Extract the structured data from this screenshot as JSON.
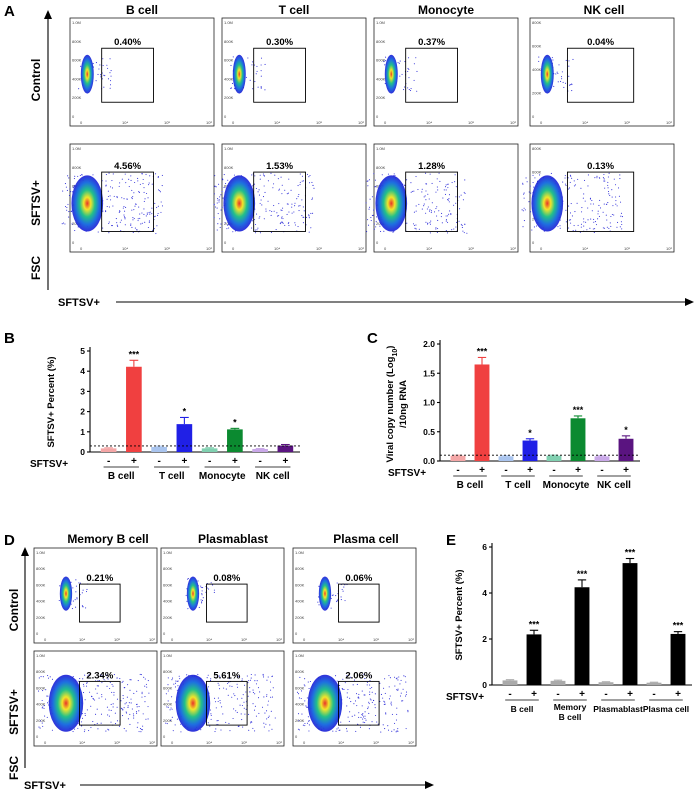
{
  "figure": {
    "panel_letters": [
      "A",
      "B",
      "C",
      "D",
      "E"
    ],
    "panel_a": {
      "columns": [
        "B cell",
        "T cell",
        "Monocyte",
        "NK cell"
      ],
      "rows": [
        "Control",
        "SFTSV+"
      ],
      "percents": [
        [
          "0.40%",
          "0.30%",
          "0.37%",
          "0.04%"
        ],
        [
          "4.56%",
          "1.53%",
          "1.28%",
          "0.13%"
        ]
      ],
      "y_axis_label": "FSC",
      "x_axis_label": "SFTSV+",
      "y_ticks": [
        "1.0M",
        "800K",
        "600K",
        "400K",
        "200K",
        "0"
      ],
      "y_ticks_nk": [
        "800K",
        "600K",
        "400K",
        "200K",
        "0"
      ],
      "x_ticks": [
        "0",
        "10⁴",
        "10⁵",
        "10⁶"
      ]
    },
    "panel_d": {
      "columns": [
        "Memory B cell",
        "Plasmablast",
        "Plasma cell"
      ],
      "rows": [
        "Control",
        "SFTSV+"
      ],
      "percents": [
        [
          "0.21%",
          "0.08%",
          "0.06%"
        ],
        [
          "2.34%",
          "5.61%",
          "2.06%"
        ]
      ],
      "y_axis_label": "FSC",
      "x_axis_label": "SFTSV+"
    },
    "colors": {
      "scale_lo": "#1b1bd6",
      "scale_mid": "#22c08a",
      "scale_hi": "#f2e62a",
      "scale_top": "#e8332a"
    }
  },
  "chart_data": [
    {
      "type": "bar",
      "panel": "B",
      "ylabel": "SFTSV+ Percent (%)",
      "xlabel": "SFTSV+",
      "ylim": [
        0,
        5
      ],
      "yticks": [
        "0",
        "1",
        "2",
        "3",
        "4",
        "5"
      ],
      "groups": [
        "B cell",
        "T cell",
        "Monocyte",
        "NK cell"
      ],
      "signs": [
        "-",
        "+"
      ],
      "values": [
        0.18,
        4.22,
        0.25,
        1.38,
        0.18,
        1.12,
        0.15,
        0.32
      ],
      "errors": [
        0.03,
        0.32,
        0.04,
        0.33,
        0.03,
        0.05,
        0.02,
        0.05
      ],
      "significance": [
        "",
        "***",
        "",
        "*",
        "",
        "*",
        "",
        ""
      ],
      "colors": [
        "#f4a6a6",
        "#f04040",
        "#a9c4ee",
        "#2020e6",
        "#80d0b0",
        "#0b8a30",
        "#c9a8e8",
        "#5a1480"
      ],
      "threshold": 0.3
    },
    {
      "type": "bar",
      "panel": "C",
      "ylabel": "Viral copy number (Log",
      "ylabel_sub": "10",
      "ylabel_tail": ")",
      "ylabel2": "/10ng RNA",
      "xlabel": "SFTSV+",
      "ylim": [
        0,
        2.0
      ],
      "yticks": [
        "0.0",
        "0.5",
        "1.0",
        "1.5",
        "2.0"
      ],
      "groups": [
        "B cell",
        "T cell",
        "Monocyte",
        "NK cell"
      ],
      "signs": [
        "-",
        "+"
      ],
      "values": [
        0.09,
        1.65,
        0.08,
        0.35,
        0.09,
        0.73,
        0.08,
        0.38
      ],
      "errors": [
        0.01,
        0.12,
        0.01,
        0.03,
        0.01,
        0.04,
        0.01,
        0.05
      ],
      "significance": [
        "",
        "***",
        "",
        "*",
        "",
        "***",
        "",
        "*"
      ],
      "colors": [
        "#f4a6a6",
        "#f04040",
        "#a9c4ee",
        "#2020e6",
        "#80d0b0",
        "#0b8a30",
        "#c9a8e8",
        "#5a1480"
      ],
      "threshold": 0.1
    },
    {
      "type": "bar",
      "panel": "E",
      "ylabel": "SFTSV+ Percent (%)",
      "xlabel": "SFTSV+",
      "ylim": [
        0,
        6
      ],
      "yticks": [
        "0",
        "2",
        "4",
        "6"
      ],
      "groups": [
        "B cell",
        "Memory B cell",
        "Plasmablast",
        "Plasma cell"
      ],
      "signs": [
        "-",
        "+"
      ],
      "values": [
        0.2,
        2.2,
        0.18,
        4.25,
        0.12,
        5.3,
        0.1,
        2.22
      ],
      "errors": [
        0.03,
        0.18,
        0.03,
        0.32,
        0.02,
        0.2,
        0.02,
        0.1
      ],
      "significance": [
        "",
        "***",
        "",
        "***",
        "",
        "***",
        "",
        "***"
      ],
      "colors": [
        "#aaaaaa",
        "#000000",
        "#aaaaaa",
        "#000000",
        "#aaaaaa",
        "#000000",
        "#aaaaaa",
        "#000000"
      ]
    }
  ]
}
